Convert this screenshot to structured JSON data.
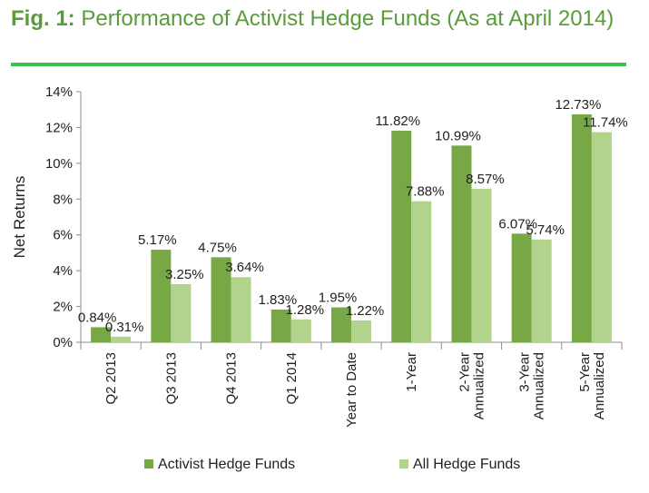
{
  "figure": {
    "label": "Fig. 1:",
    "title": "Performance of Activist Hedge Funds (As at April 2014)"
  },
  "colors": {
    "title": "#5a9b3a",
    "rule": "#3fbe52",
    "activist": "#77a845",
    "all": "#b1d38c",
    "axis": "#8c8c8c",
    "text": "#222222"
  },
  "chart_data": {
    "type": "bar",
    "ylabel": "Net Returns",
    "ylim": [
      0,
      14
    ],
    "yticks": [
      "0%",
      "2%",
      "4%",
      "6%",
      "8%",
      "10%",
      "12%",
      "14%"
    ],
    "grid": false,
    "legend_position": "bottom",
    "categories": [
      [
        "Q2 2013"
      ],
      [
        "Q3 2013"
      ],
      [
        "Q4 2013"
      ],
      [
        "Q1 2014"
      ],
      [
        "Year to Date"
      ],
      [
        "1-Year"
      ],
      [
        "2-Year",
        "Annualized"
      ],
      [
        "3-Year",
        "Annualized"
      ],
      [
        "5-Year",
        "Annualized"
      ]
    ],
    "series": [
      {
        "name": "Activist Hedge Funds",
        "values": [
          0.84,
          5.17,
          4.75,
          1.83,
          1.95,
          11.82,
          10.99,
          6.07,
          12.73
        ],
        "labels": [
          "0.84%",
          "5.17%",
          "4.75%",
          "1.83%",
          "1.95%",
          "11.82%",
          "10.99%",
          "6.07%",
          "12.73%"
        ]
      },
      {
        "name": "All Hedge Funds",
        "values": [
          0.31,
          3.25,
          3.64,
          1.28,
          1.22,
          7.88,
          8.57,
          5.74,
          11.74
        ],
        "labels": [
          "0.31%",
          "3.25%",
          "3.64%",
          "1.28%",
          "1.22%",
          "7.88%",
          "8.57%",
          "5.74%",
          "11.74%"
        ]
      }
    ]
  }
}
